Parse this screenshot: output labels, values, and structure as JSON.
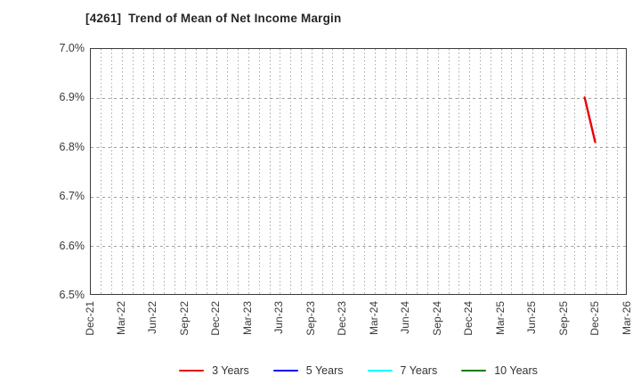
{
  "title": "[4261]  Trend of Mean of Net Income Margin",
  "chart_data": {
    "type": "line",
    "title": "[4261]  Trend of Mean of Net Income Margin",
    "xlabel": "",
    "ylabel": "",
    "ylim": [
      6.5,
      7.0
    ],
    "y_tick_step": 0.1,
    "y_ticks": [
      {
        "value": 7.0,
        "label": "7.0%"
      },
      {
        "value": 6.9,
        "label": "6.9%"
      },
      {
        "value": 6.8,
        "label": "6.8%"
      },
      {
        "value": 6.7,
        "label": "6.7%"
      },
      {
        "value": 6.6,
        "label": "6.6%"
      },
      {
        "value": 6.5,
        "label": "6.5%"
      }
    ],
    "x_start": "Dec-21",
    "x_end": "Mar-26",
    "x_minor_grid_interval_months": 1,
    "x_tick_interval_months": 3,
    "x_tick_labels": [
      "Dec-21",
      "Mar-22",
      "Jun-22",
      "Sep-22",
      "Dec-22",
      "Mar-23",
      "Jun-23",
      "Sep-23",
      "Dec-23",
      "Mar-24",
      "Jun-24",
      "Sep-24",
      "Dec-24",
      "Mar-25",
      "Jun-25",
      "Sep-25",
      "Dec-25",
      "Mar-26"
    ],
    "grid": true,
    "legend_position": "bottom-center",
    "series": [
      {
        "name": "3 Years",
        "color": "#e8000b",
        "points": [
          [
            "Nov-25",
            6.9
          ],
          [
            "Dec-25",
            6.81
          ]
        ]
      },
      {
        "name": "5 Years",
        "color": "#0000ff",
        "points": []
      },
      {
        "name": "7 Years",
        "color": "#00ffff",
        "points": []
      },
      {
        "name": "10 Years",
        "color": "#008000",
        "points": []
      }
    ]
  },
  "colors": {
    "background": "#ffffff",
    "axis_frame": "#3a3a3a",
    "grid_vertical": "#a6a6a6",
    "grid_horizontal": "#9c9c9c",
    "tick_label": "#3a3a3a",
    "title": "#262626"
  }
}
